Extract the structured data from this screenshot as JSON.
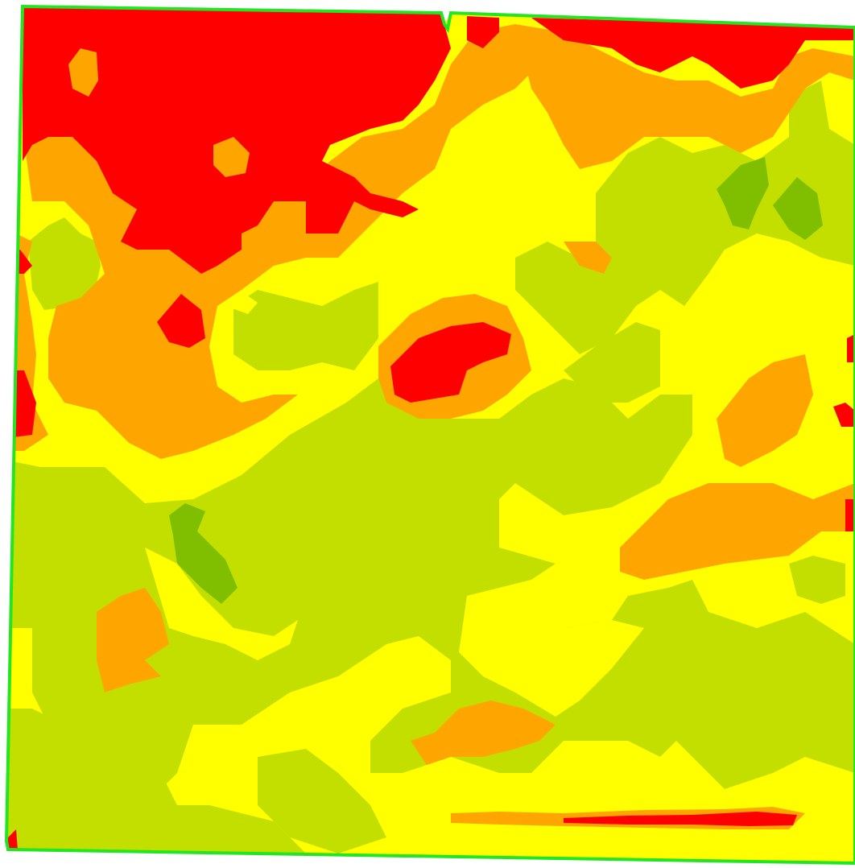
{
  "map": {
    "type": "field-zone-map",
    "boundary_color": "#22e622",
    "zone_classes": [
      {
        "id": "zone-red",
        "color": "#ff0000",
        "rank": 1
      },
      {
        "id": "zone-orange",
        "color": "#ffa500",
        "rank": 2
      },
      {
        "id": "zone-yellow",
        "color": "#ffff00",
        "rank": 3
      },
      {
        "id": "zone-light-green",
        "color": "#c2df00",
        "rank": 4
      },
      {
        "id": "zone-dark-green",
        "color": "#7fbf00",
        "rank": 5
      }
    ]
  }
}
